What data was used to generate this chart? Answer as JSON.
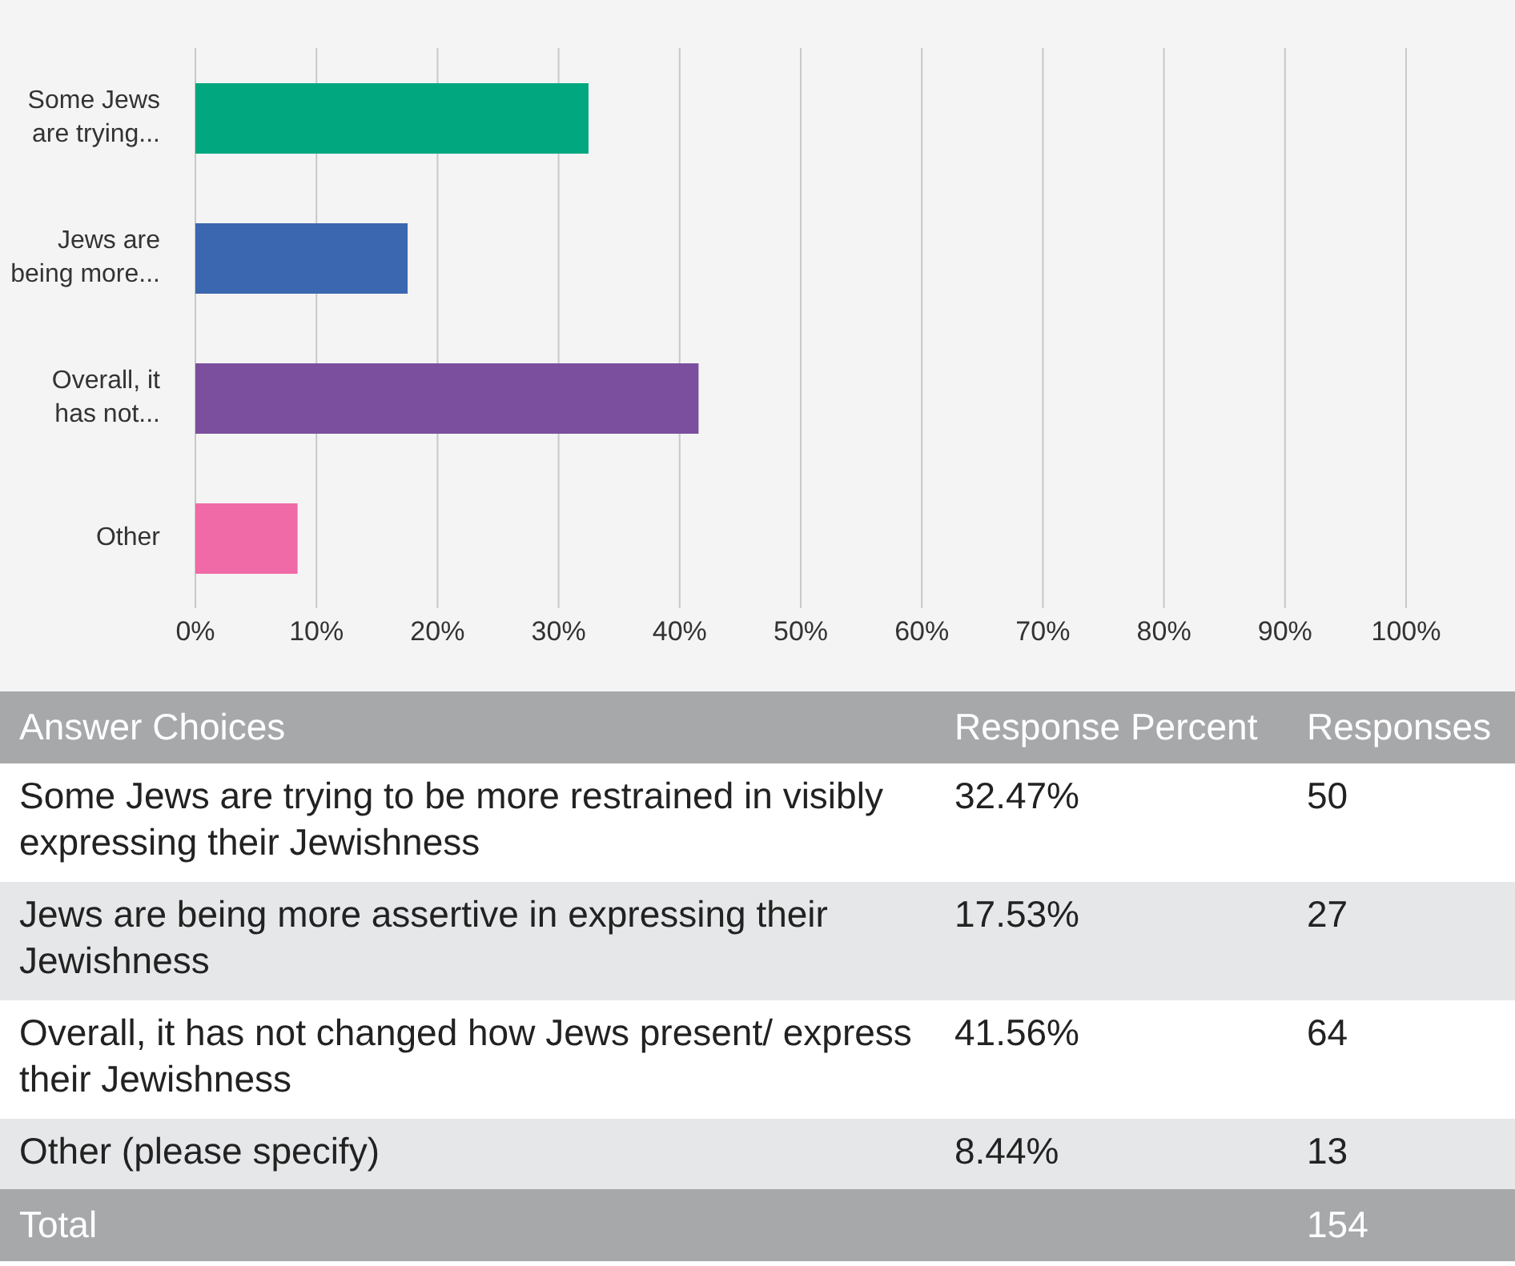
{
  "chart_data": {
    "type": "bar",
    "orientation": "horizontal",
    "categories": [
      "Some Jews are trying...",
      "Jews are being more...",
      "Overall, it has not...",
      "Other"
    ],
    "values": [
      32.47,
      17.53,
      41.56,
      8.44
    ],
    "colors": [
      "#00a77f",
      "#3b67b0",
      "#7b4f9d",
      "#ef6aa7"
    ],
    "xlim": [
      0,
      100
    ],
    "xticks": [
      {
        "value": 0,
        "label": "0%"
      },
      {
        "value": 10,
        "label": "10%"
      },
      {
        "value": 20,
        "label": "20%"
      },
      {
        "value": 30,
        "label": "30%"
      },
      {
        "value": 40,
        "label": "40%"
      },
      {
        "value": 50,
        "label": "50%"
      },
      {
        "value": 60,
        "label": "60%"
      },
      {
        "value": 70,
        "label": "70%"
      },
      {
        "value": 80,
        "label": "80%"
      },
      {
        "value": 90,
        "label": "90%"
      },
      {
        "value": 100,
        "label": "100%"
      }
    ],
    "grid": "x",
    "legend": false,
    "annotations": [
      "Answer Choices",
      "Response Percent",
      "Responses",
      "Some Jews are trying to be more restrained in visibly expressing their Jewishness",
      "32.47%",
      "50",
      "Jews are being more assertive in expressing their Jewishness",
      "17.53%",
      "27",
      "Overall, it has not changed how Jews present/ express their Jewishness",
      "41.56%",
      "64",
      "Other (please specify)",
      "8.44%",
      "13",
      "Total",
      "154"
    ]
  }
}
